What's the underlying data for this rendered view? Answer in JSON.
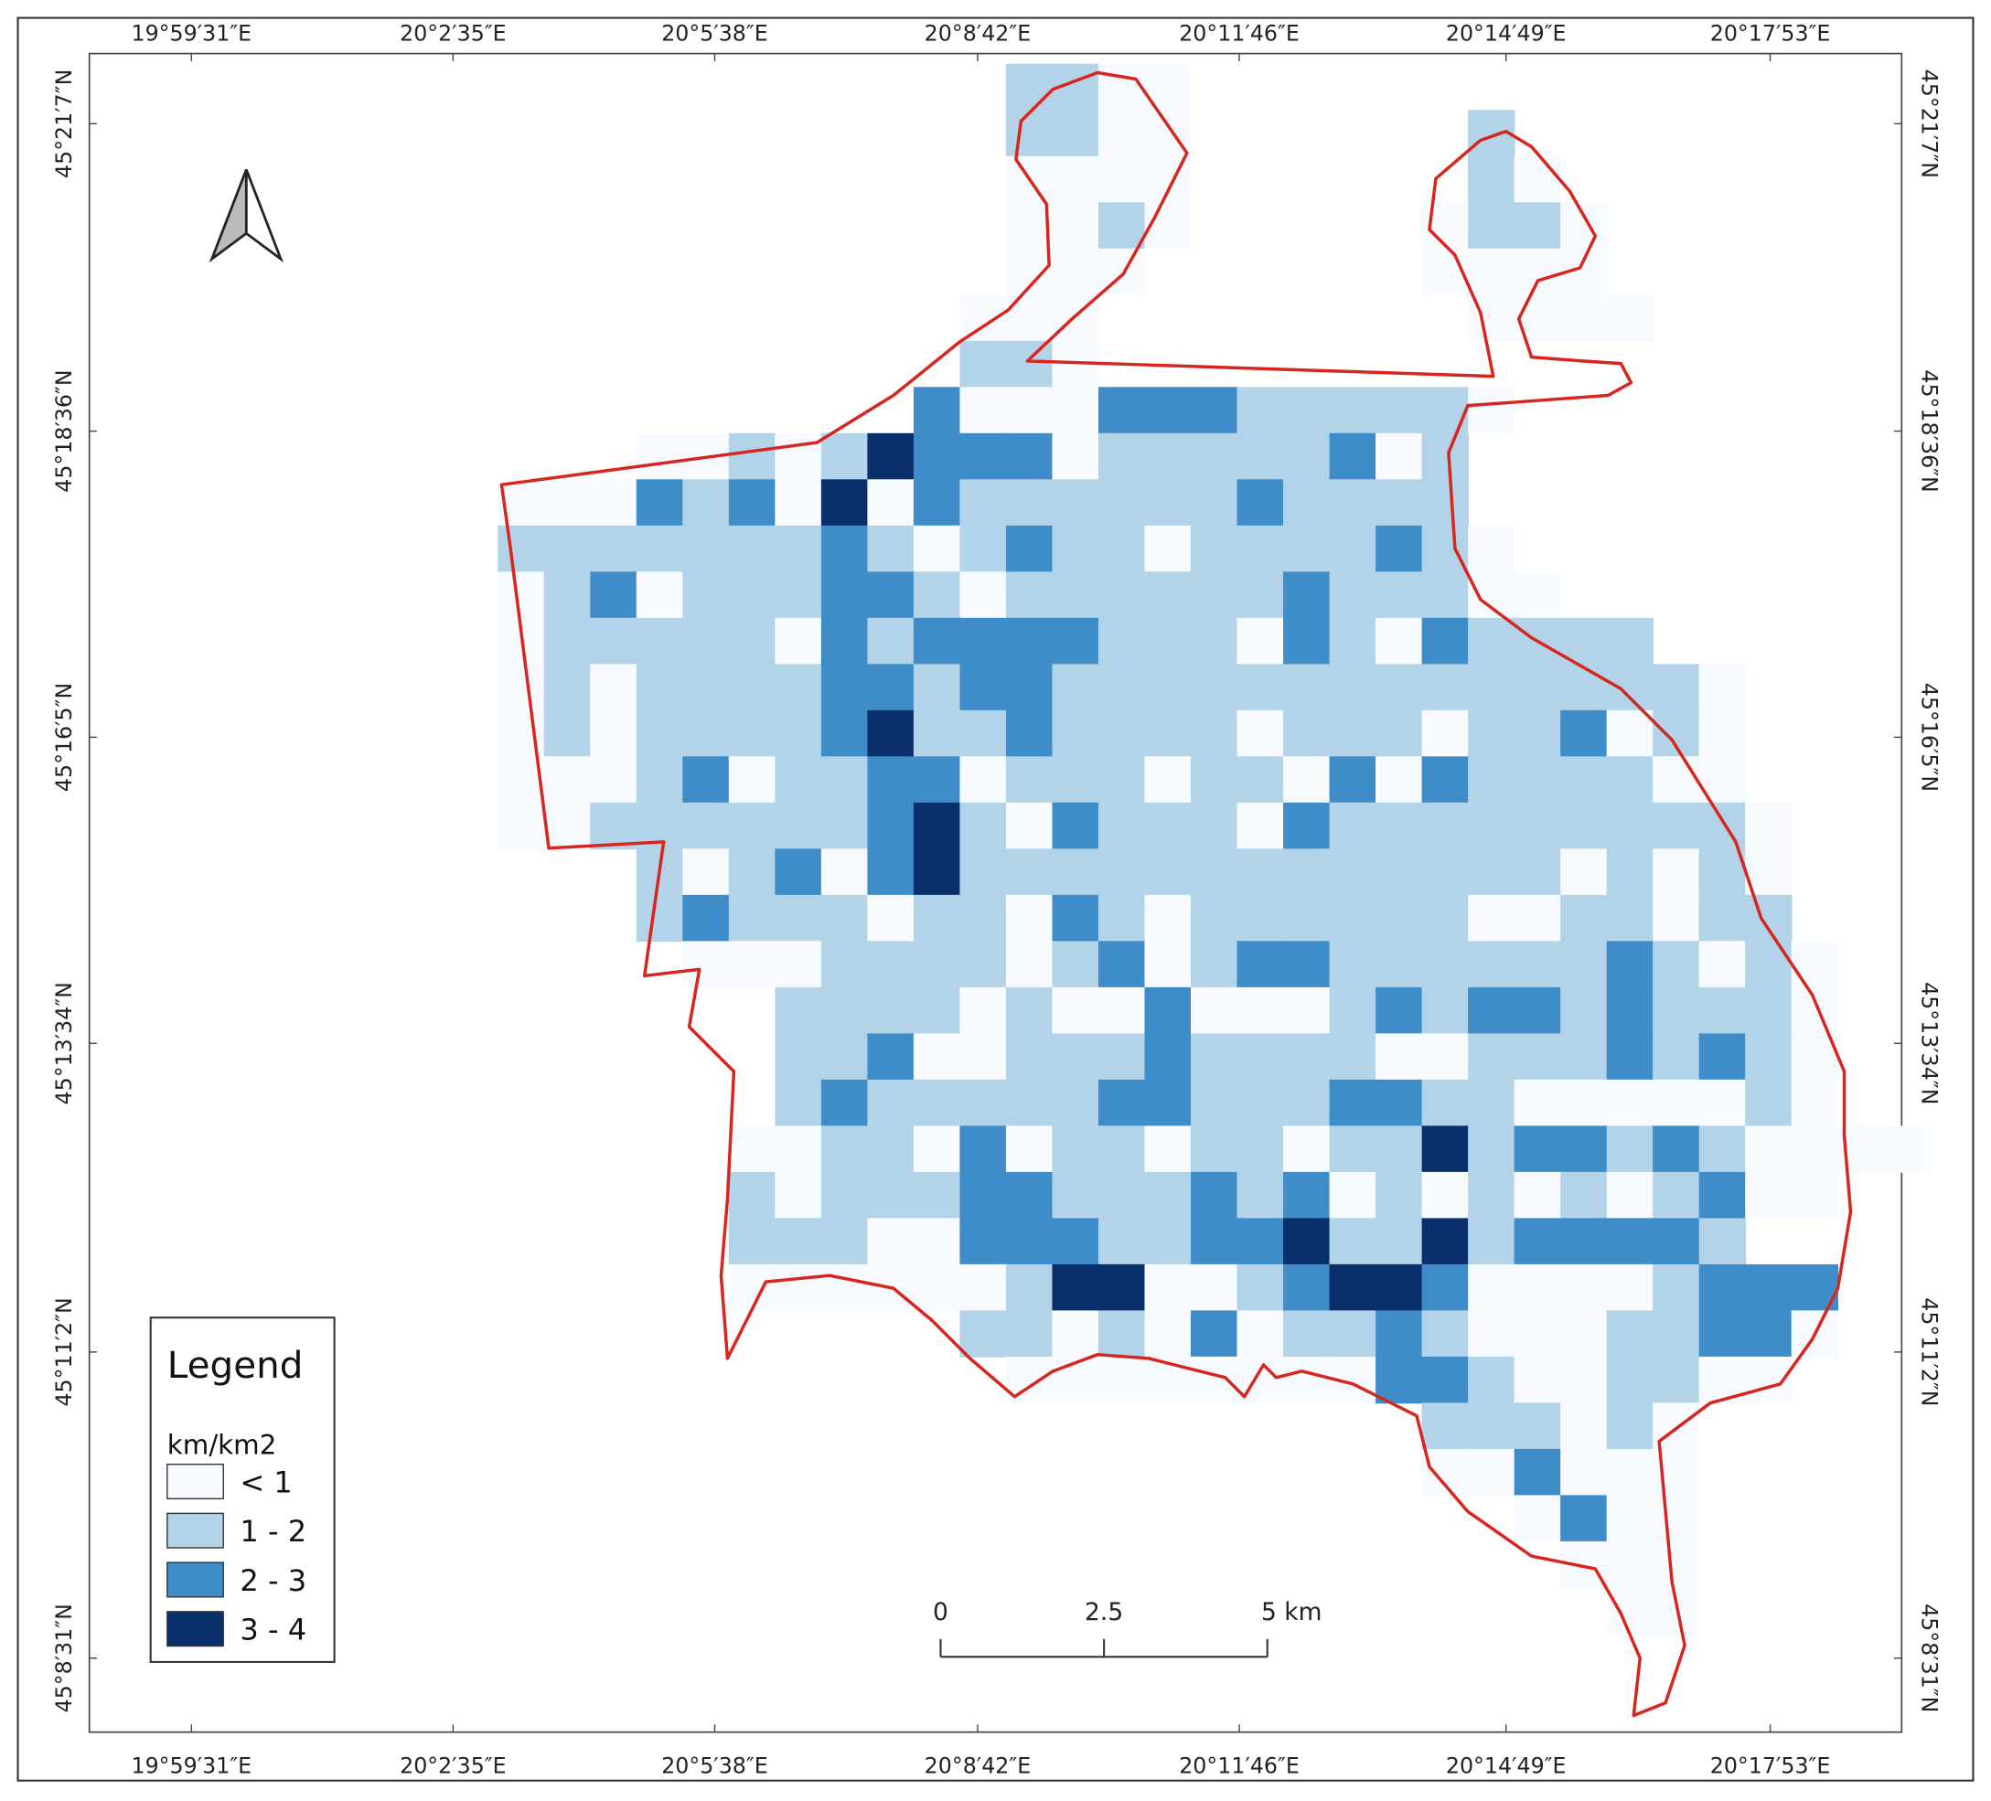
{
  "map": {
    "lon_labels": [
      "19°59′31″E",
      "20°2′35″E",
      "20°5′38″E",
      "20°8′42″E",
      "20°11′46″E",
      "20°14′49″E",
      "20°17′53″E"
    ],
    "lat_labels": [
      "45°21′7″N",
      "45°18′36″N",
      "45°16′5″N",
      "45°13′34″N",
      "45°11′2″N",
      "45°8′31″N"
    ],
    "legend": {
      "title": "Legend",
      "unit": "km/km2",
      "items": [
        {
          "label": "< 1",
          "color": "#f7fbff"
        },
        {
          "label": "1 - 2",
          "color": "#b3d3e8"
        },
        {
          "label": "2 - 3",
          "color": "#3f8dc8"
        },
        {
          "label": "3 - 4",
          "color": "#0a306b"
        }
      ]
    },
    "scale_bar": {
      "labels": [
        "0",
        "2.5",
        "5 km"
      ]
    }
  }
}
